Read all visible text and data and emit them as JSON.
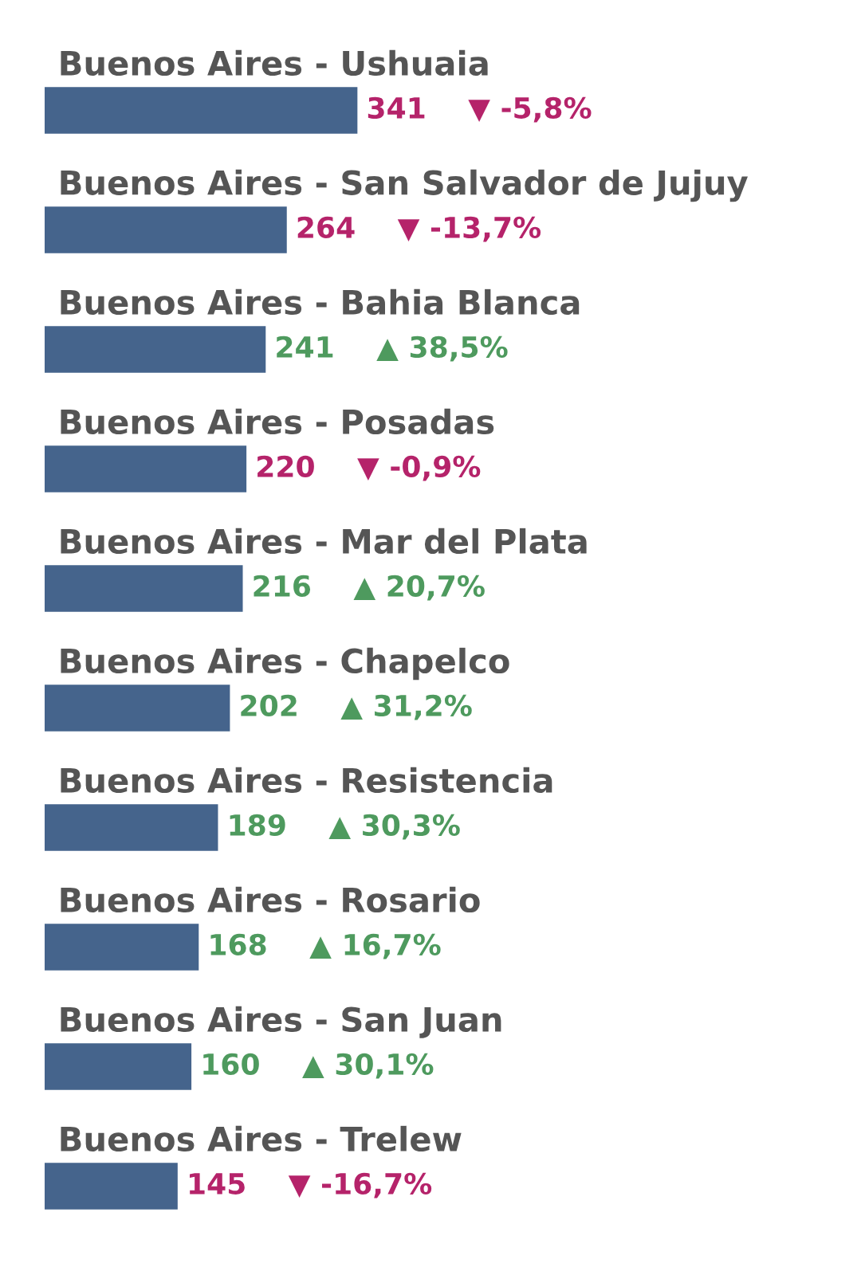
{
  "chart_data": {
    "type": "bar",
    "orientation": "horizontal",
    "data_labels": true,
    "categories": [
      "Buenos Aires - Ushuaia",
      "Buenos Aires - San Salvador de Jujuy",
      "Buenos Aires - Bahia Blanca",
      "Buenos Aires - Posadas",
      "Buenos Aires - Mar del Plata",
      "Buenos Aires - Chapelco",
      "Buenos Aires - Resistencia",
      "Buenos Aires - Rosario",
      "Buenos Aires - San Juan",
      "Buenos Aires - Trelew"
    ],
    "values": [
      341,
      264,
      241,
      220,
      216,
      202,
      189,
      168,
      160,
      145
    ],
    "color": "#45648c",
    "annotations": [
      "▼ -5,8%",
      "▼ -13,7%",
      "▲ 38,5%",
      "▼ -0,9%",
      "▲ 20,7%",
      "▲ 31,2%",
      "▲ 30,3%",
      "▲ 16,7%",
      "▲ 30,1%",
      "▼ -16,7%"
    ]
  }
}
